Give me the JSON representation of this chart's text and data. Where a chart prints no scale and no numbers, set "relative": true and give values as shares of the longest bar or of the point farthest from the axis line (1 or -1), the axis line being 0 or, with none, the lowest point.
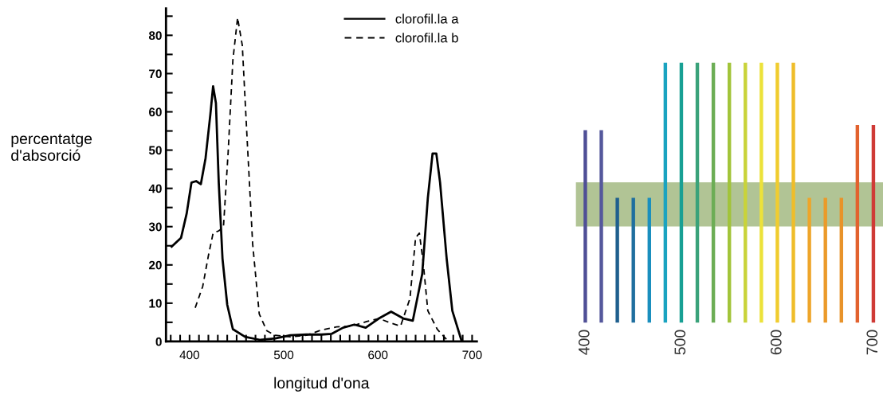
{
  "chart_data": [
    {
      "type": "line",
      "xlabel": "longitud d'ona",
      "ylabel": "percentatge\nd'absorció",
      "xlim": [
        375,
        705
      ],
      "xticks": [
        400,
        500,
        600,
        700
      ],
      "ylim": [
        0,
        87
      ],
      "yticks": [
        0,
        10,
        20,
        30,
        40,
        50,
        60,
        70,
        80
      ],
      "grid": false,
      "legend": "top right",
      "marker": "none",
      "series": [
        {
          "name": "clorofil.la a",
          "color": "#000000",
          "line_style": "solid",
          "x": [
            381,
            391,
            397,
            402,
            407,
            412,
            417,
            422,
            425,
            428,
            431,
            435,
            440,
            446,
            459,
            475,
            491,
            507,
            524,
            540,
            551,
            563,
            575,
            587,
            601,
            614,
            627,
            637,
            647,
            653,
            658,
            662,
            666,
            673,
            679,
            689
          ],
          "values": [
            24.8,
            27.1,
            33.5,
            41.5,
            41.9,
            41.1,
            47.9,
            59.1,
            66.7,
            62.3,
            41.5,
            21.6,
            9.6,
            3.2,
            1.2,
            0.4,
            0.8,
            1.6,
            1.8,
            1.8,
            2.0,
            3.6,
            4.4,
            3.6,
            6.0,
            7.8,
            6.0,
            5.4,
            17.6,
            37.5,
            49.1,
            49.1,
            41.5,
            21.6,
            8.0,
            0
          ]
        },
        {
          "name": "clorofil.la b",
          "color": "#000000",
          "line_style": "dashed",
          "x": [
            406,
            414,
            420,
            425,
            431,
            436,
            441,
            446,
            451,
            456,
            461,
            467,
            474,
            482,
            491,
            507,
            524,
            540,
            556,
            572,
            588,
            601,
            614,
            624,
            634,
            640,
            644,
            648,
            653,
            663,
            674
          ],
          "values": [
            8.8,
            14.4,
            22.4,
            28.3,
            28.9,
            29.9,
            49.5,
            73.5,
            84.6,
            77.4,
            53.5,
            25.5,
            7.2,
            2.8,
            1.6,
            1.2,
            1.6,
            3.0,
            3.8,
            4.0,
            5.2,
            6.0,
            4.8,
            4.0,
            11.2,
            27.1,
            28.3,
            20.8,
            8.0,
            3.2,
            0.2
          ]
        }
      ]
    },
    {
      "type": "bar",
      "relative": true,
      "categories": [
        "400",
        null,
        null,
        null,
        null,
        null,
        "500",
        null,
        null,
        null,
        null,
        null,
        "600",
        null,
        null,
        null,
        null,
        null,
        "700"
      ],
      "values": [
        0.74,
        0.74,
        0.48,
        0.48,
        0.48,
        1,
        1,
        1,
        1,
        1,
        1,
        1,
        1,
        1,
        0.48,
        0.48,
        0.48,
        0.76,
        0.76
      ],
      "colors": [
        "#4f4f96",
        "#55589c",
        "#1f5f8e",
        "#1f6f9f",
        "#1a8fbe",
        "#1aa3c0",
        "#18a094",
        "#3aa27a",
        "#6cad55",
        "#a2c43a",
        "#c9d33a",
        "#ece23a",
        "#f0cc2e",
        "#efbd2a",
        "#eea52a",
        "#eb9a2a",
        "#e8932a",
        "#e2622e",
        "#cf3a36"
      ],
      "bands": [
        {
          "axis": "y",
          "from": 0.37,
          "to": 0.54,
          "color": "#9db57a"
        }
      ]
    }
  ]
}
